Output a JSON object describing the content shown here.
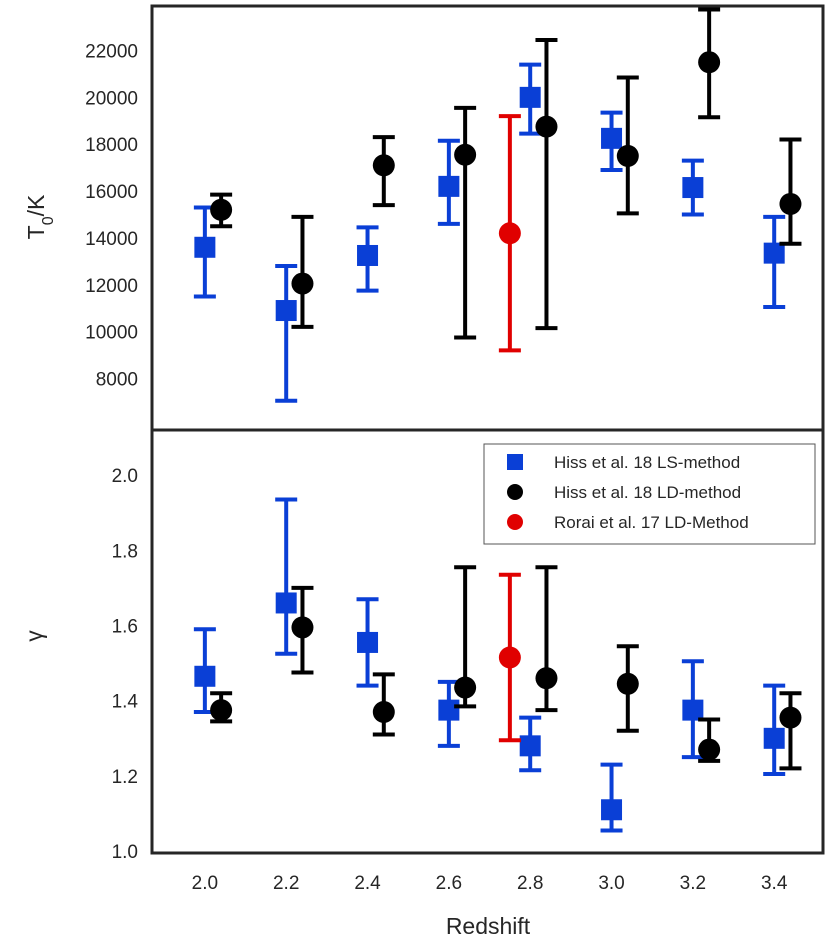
{
  "chart_data": {
    "type": "scatter",
    "xlabel": "Redshift",
    "x_ticks": [
      "2.0",
      "2.2",
      "2.4",
      "2.6",
      "2.8",
      "3.0",
      "3.2",
      "3.4"
    ],
    "xlim": [
      1.87,
      3.52
    ],
    "panels": [
      {
        "id": "T0",
        "ylabel": "T",
        "ylabel_sub": "0",
        "ylabel_rest": "/K",
        "ylim": [
          5800,
          23900
        ],
        "y_ticks": [
          "8000",
          "10000",
          "12000",
          "14000",
          "16000",
          "18000",
          "20000",
          "22000"
        ],
        "series": [
          {
            "name": "Hiss et al. 18 LS-method",
            "marker": "square",
            "color": "#0a3fd6",
            "points": [
              {
                "x": 2.0,
                "y": 13600,
                "low": 11500,
                "high": 15300
              },
              {
                "x": 2.2,
                "y": 10900,
                "low": 7050,
                "high": 12800
              },
              {
                "x": 2.4,
                "y": 13250,
                "low": 11750,
                "high": 14450
              },
              {
                "x": 2.6,
                "y": 16200,
                "low": 14600,
                "high": 18150
              },
              {
                "x": 2.8,
                "y": 20000,
                "low": 18450,
                "high": 21400
              },
              {
                "x": 3.0,
                "y": 18250,
                "low": 16900,
                "high": 19350
              },
              {
                "x": 3.2,
                "y": 16150,
                "low": 15000,
                "high": 17300
              },
              {
                "x": 3.4,
                "y": 13350,
                "low": 11050,
                "high": 14900
              }
            ]
          },
          {
            "name": "Hiss et al. 18 LD-method",
            "marker": "circle",
            "color": "#000000",
            "points": [
              {
                "x": 2.04,
                "y": 15200,
                "low": 14500,
                "high": 15850
              },
              {
                "x": 2.24,
                "y": 12050,
                "low": 10200,
                "high": 14900
              },
              {
                "x": 2.44,
                "y": 17100,
                "low": 15400,
                "high": 18300
              },
              {
                "x": 2.64,
                "y": 17550,
                "low": 9750,
                "high": 19550
              },
              {
                "x": 2.84,
                "y": 18750,
                "low": 10150,
                "high": 22450
              },
              {
                "x": 3.04,
                "y": 17500,
                "low": 15050,
                "high": 20850
              },
              {
                "x": 3.24,
                "y": 21500,
                "low": 19150,
                "high": 23750
              },
              {
                "x": 3.44,
                "y": 15450,
                "low": 13750,
                "high": 18200
              }
            ]
          },
          {
            "name": "Rorai et al. 17 LD-Method",
            "marker": "circle",
            "color": "#e00000",
            "points": [
              {
                "x": 2.75,
                "y": 14200,
                "low": 9200,
                "high": 19200
              }
            ]
          }
        ]
      },
      {
        "id": "gamma",
        "ylabel": "γ",
        "ylim": [
          0.995,
          2.12
        ],
        "y_ticks": [
          "1.0",
          "1.2",
          "1.4",
          "1.6",
          "1.8",
          "2.0"
        ],
        "series": [
          {
            "name": "Hiss et al. 18 LS-method",
            "marker": "square",
            "color": "#0a3fd6",
            "points": [
              {
                "x": 2.0,
                "y": 1.465,
                "low": 1.37,
                "high": 1.59
              },
              {
                "x": 2.2,
                "y": 1.66,
                "low": 1.525,
                "high": 1.935
              },
              {
                "x": 2.4,
                "y": 1.555,
                "low": 1.44,
                "high": 1.67
              },
              {
                "x": 2.6,
                "y": 1.375,
                "low": 1.28,
                "high": 1.45
              },
              {
                "x": 2.8,
                "y": 1.28,
                "low": 1.215,
                "high": 1.355
              },
              {
                "x": 3.0,
                "y": 1.11,
                "low": 1.055,
                "high": 1.23
              },
              {
                "x": 3.2,
                "y": 1.375,
                "low": 1.25,
                "high": 1.505
              },
              {
                "x": 3.4,
                "y": 1.3,
                "low": 1.205,
                "high": 1.44
              }
            ]
          },
          {
            "name": "Hiss et al. 18 LD-method",
            "marker": "circle",
            "color": "#000000",
            "points": [
              {
                "x": 2.04,
                "y": 1.375,
                "low": 1.345,
                "high": 1.42
              },
              {
                "x": 2.24,
                "y": 1.595,
                "low": 1.475,
                "high": 1.7
              },
              {
                "x": 2.44,
                "y": 1.37,
                "low": 1.31,
                "high": 1.47
              },
              {
                "x": 2.64,
                "y": 1.435,
                "low": 1.385,
                "high": 1.755
              },
              {
                "x": 2.84,
                "y": 1.46,
                "low": 1.375,
                "high": 1.755
              },
              {
                "x": 3.04,
                "y": 1.445,
                "low": 1.32,
                "high": 1.545
              },
              {
                "x": 3.24,
                "y": 1.27,
                "low": 1.24,
                "high": 1.35
              },
              {
                "x": 3.44,
                "y": 1.355,
                "low": 1.22,
                "high": 1.42
              }
            ]
          },
          {
            "name": "Rorai et al. 17 LD-Method",
            "marker": "circle",
            "color": "#e00000",
            "points": [
              {
                "x": 2.75,
                "y": 1.515,
                "low": 1.295,
                "high": 1.735
              }
            ]
          }
        ]
      }
    ],
    "legend": {
      "placement": "top-right of lower panel",
      "entries": [
        {
          "label": "Hiss et al. 18 LS-method",
          "marker": "square",
          "color": "#0a3fd6"
        },
        {
          "label": "Hiss et al. 18 LD-method",
          "marker": "circle",
          "color": "#000000"
        },
        {
          "label": "Rorai et al. 17 LD-Method",
          "marker": "circle",
          "color": "#e00000"
        }
      ]
    }
  }
}
